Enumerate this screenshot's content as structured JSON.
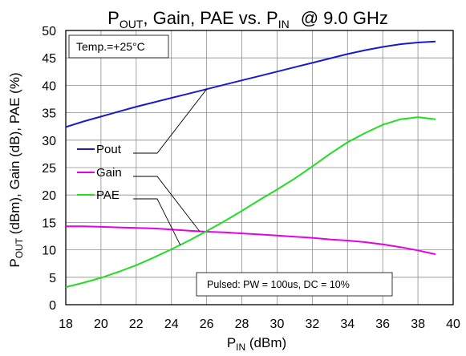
{
  "chart_data": {
    "type": "line",
    "title": {
      "p_main": "P",
      "p_sub": "OUT",
      "rest": ", Gain, PAE vs. P",
      "in_sub": "IN",
      "freq": "@ 9.0 GHz"
    },
    "xlabel": {
      "main": "P",
      "sub": "IN",
      "rest": " (dBm)"
    },
    "ylabel": {
      "main": "P",
      "sub": "OUT",
      "rest": " (dBm), Gain (dB), PAE (%)"
    },
    "xlim": [
      18,
      40
    ],
    "ylim": [
      0,
      50
    ],
    "xticks": [
      18,
      20,
      22,
      24,
      26,
      28,
      30,
      32,
      34,
      36,
      38,
      40
    ],
    "yticks": [
      0,
      5,
      10,
      15,
      20,
      25,
      30,
      35,
      40,
      45,
      50
    ],
    "grid": true,
    "annotations": {
      "temp": "Temp.=+25°C",
      "pulsed": "Pulsed: PW = 100us, DC = 10%"
    },
    "x": [
      18,
      19,
      20,
      21,
      22,
      23,
      24,
      25,
      26,
      27,
      28,
      29,
      30,
      31,
      32,
      33,
      34,
      35,
      36,
      37,
      38,
      39
    ],
    "series": [
      {
        "name": "Pout",
        "color": "#1a1acc",
        "values": [
          32.4,
          33.4,
          34.3,
          35.2,
          36.1,
          36.9,
          37.7,
          38.5,
          39.3,
          40.1,
          40.9,
          41.7,
          42.5,
          43.3,
          44.1,
          44.9,
          45.7,
          46.4,
          47.0,
          47.5,
          47.8,
          48.0
        ]
      },
      {
        "name": "Gain",
        "color": "#e600e6",
        "values": [
          14.3,
          14.3,
          14.2,
          14.1,
          14.0,
          13.9,
          13.7,
          13.5,
          13.3,
          13.2,
          13.0,
          12.8,
          12.6,
          12.4,
          12.2,
          11.9,
          11.7,
          11.4,
          11.0,
          10.5,
          9.9,
          9.2
        ]
      },
      {
        "name": "PAE",
        "color": "#22dd22",
        "values": [
          3.2,
          4.0,
          4.9,
          6.0,
          7.2,
          8.6,
          10.1,
          11.7,
          13.4,
          15.2,
          17.1,
          19.1,
          21.0,
          23.0,
          25.2,
          27.5,
          29.6,
          31.3,
          32.8,
          33.8,
          34.2,
          33.8
        ]
      }
    ],
    "legend": [
      "Pout",
      "Gain",
      "PAE"
    ]
  }
}
